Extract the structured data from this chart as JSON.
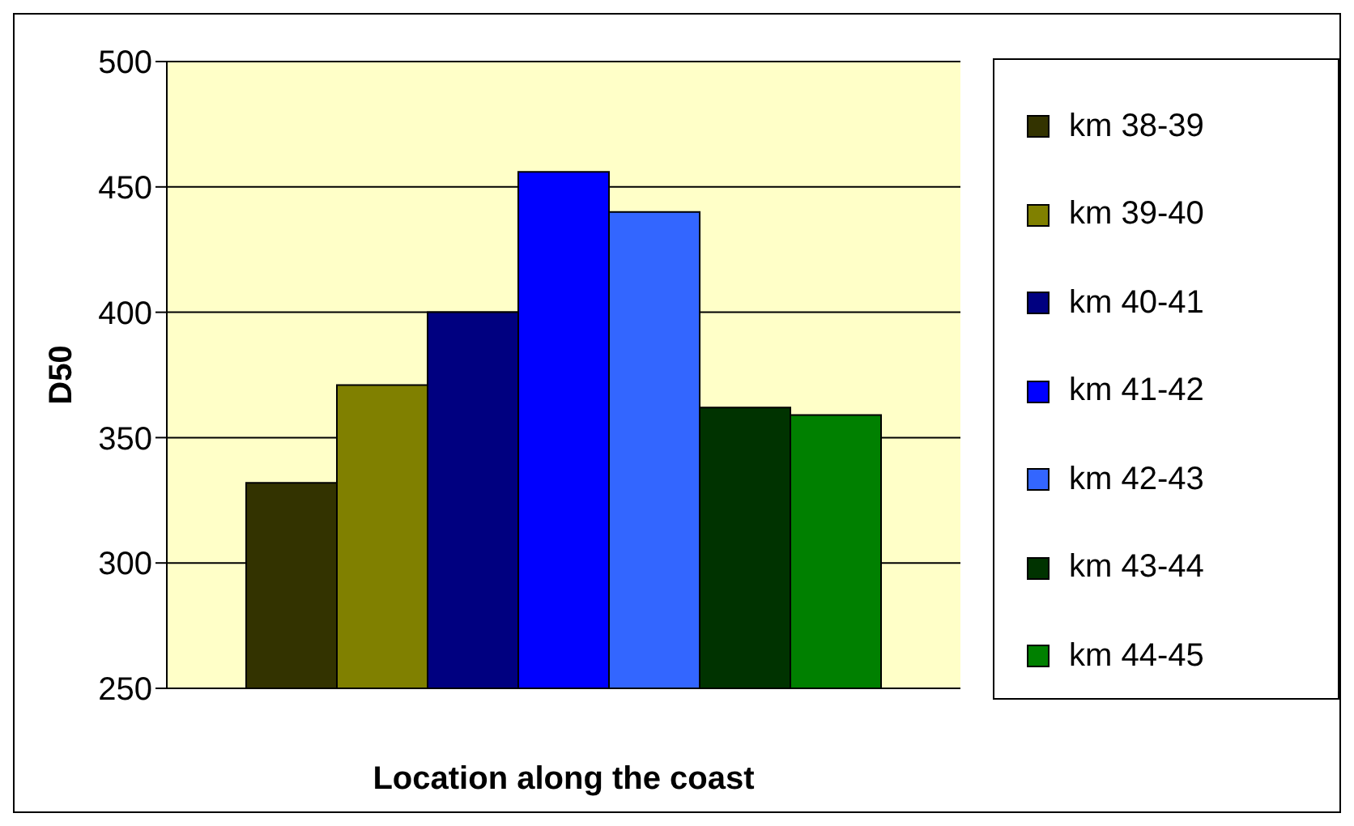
{
  "chart_data": {
    "type": "bar",
    "xlabel": "Location along the coast",
    "ylabel": "D50",
    "categories": [
      null
    ],
    "series": [
      {
        "name": "km 38-39",
        "color": "#333300",
        "values": [
          332
        ]
      },
      {
        "name": "km 39-40",
        "color": "#808000",
        "values": [
          371
        ]
      },
      {
        "name": "km 40-41",
        "color": "#000080",
        "values": [
          400
        ]
      },
      {
        "name": "km 41-42",
        "color": "#0000ff",
        "values": [
          456
        ]
      },
      {
        "name": "km 42-43",
        "color": "#3366ff",
        "values": [
          440
        ]
      },
      {
        "name": "km 43-44",
        "color": "#003300",
        "values": [
          362
        ]
      },
      {
        "name": "km 44-45",
        "color": "#008000",
        "values": [
          359
        ]
      }
    ],
    "ylim": [
      250,
      500
    ],
    "yticks": [
      250,
      300,
      350,
      400,
      450,
      500
    ],
    "grid": "y",
    "legend": "right"
  }
}
